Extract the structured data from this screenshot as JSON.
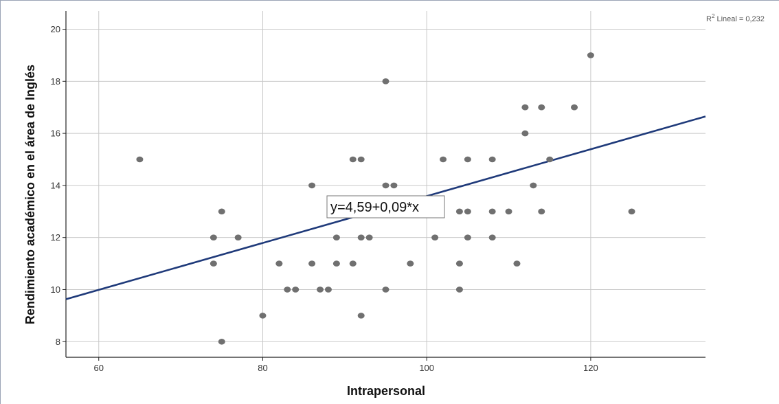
{
  "chart_data": {
    "type": "scatter",
    "xlabel": "Intrapersonal",
    "ylabel": "Rendimiento académico en el área de Inglés",
    "xlim": [
      56,
      134
    ],
    "ylim": [
      7.4,
      20.7
    ],
    "xticks": [
      60,
      80,
      100,
      120
    ],
    "yticks": [
      8,
      10,
      12,
      14,
      16,
      18,
      20
    ],
    "xtick_labels": [
      "60",
      "80",
      "100",
      "120"
    ],
    "ytick_labels": [
      "8",
      "10",
      "12",
      "14",
      "16",
      "18",
      "20"
    ],
    "grid": true,
    "points": [
      {
        "x": 65,
        "y": 15
      },
      {
        "x": 74,
        "y": 12
      },
      {
        "x": 74,
        "y": 11
      },
      {
        "x": 75,
        "y": 13
      },
      {
        "x": 75,
        "y": 8
      },
      {
        "x": 77,
        "y": 12
      },
      {
        "x": 80,
        "y": 9
      },
      {
        "x": 82,
        "y": 11
      },
      {
        "x": 83,
        "y": 10
      },
      {
        "x": 84,
        "y": 10
      },
      {
        "x": 86,
        "y": 14
      },
      {
        "x": 86,
        "y": 11
      },
      {
        "x": 87,
        "y": 10
      },
      {
        "x": 88,
        "y": 10
      },
      {
        "x": 89,
        "y": 12
      },
      {
        "x": 89,
        "y": 11
      },
      {
        "x": 91,
        "y": 15
      },
      {
        "x": 91,
        "y": 11
      },
      {
        "x": 92,
        "y": 15
      },
      {
        "x": 92,
        "y": 12
      },
      {
        "x": 92,
        "y": 9
      },
      {
        "x": 93,
        "y": 12
      },
      {
        "x": 95,
        "y": 18
      },
      {
        "x": 95,
        "y": 14
      },
      {
        "x": 95,
        "y": 10
      },
      {
        "x": 96,
        "y": 14
      },
      {
        "x": 98,
        "y": 11
      },
      {
        "x": 101,
        "y": 12
      },
      {
        "x": 102,
        "y": 15
      },
      {
        "x": 104,
        "y": 13
      },
      {
        "x": 104,
        "y": 11
      },
      {
        "x": 104,
        "y": 10
      },
      {
        "x": 105,
        "y": 15
      },
      {
        "x": 105,
        "y": 13
      },
      {
        "x": 105,
        "y": 12
      },
      {
        "x": 108,
        "y": 15
      },
      {
        "x": 108,
        "y": 13
      },
      {
        "x": 108,
        "y": 12
      },
      {
        "x": 110,
        "y": 13
      },
      {
        "x": 111,
        "y": 11
      },
      {
        "x": 112,
        "y": 17
      },
      {
        "x": 112,
        "y": 16
      },
      {
        "x": 113,
        "y": 14
      },
      {
        "x": 114,
        "y": 17
      },
      {
        "x": 114,
        "y": 13
      },
      {
        "x": 115,
        "y": 15
      },
      {
        "x": 118,
        "y": 17
      },
      {
        "x": 120,
        "y": 19
      },
      {
        "x": 125,
        "y": 13
      }
    ],
    "fit_line": {
      "intercept": 4.59,
      "slope": 0.09,
      "color": "#1f3a7a"
    },
    "equation_label": "y=4,59+0,09*x",
    "r2_label": {
      "prefix": "R",
      "sup": "2",
      "suffix": " Lineal = 0,232"
    },
    "colors": {
      "points": "#707070",
      "grid": "#c8c8c8",
      "axis": "#222222"
    }
  }
}
